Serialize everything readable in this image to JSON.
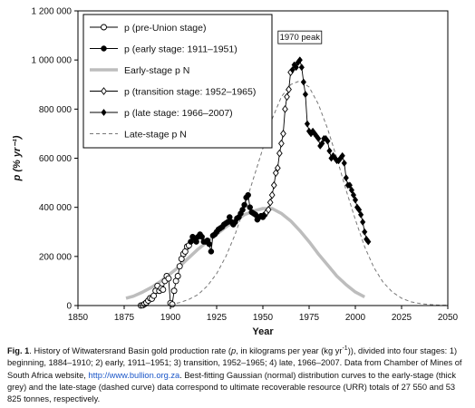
{
  "chart_data": {
    "type": "scatter",
    "xlabel": "Year",
    "ylabel": "p (% yr⁻¹)",
    "xlim": [
      1850,
      2050
    ],
    "ylim": [
      0,
      1200000
    ],
    "xticks": [
      1850,
      1875,
      1900,
      1925,
      1950,
      1975,
      2000,
      2025,
      2050
    ],
    "yticks": [
      0,
      200000,
      400000,
      600000,
      800000,
      1000000,
      1200000
    ],
    "xtick_labels": [
      "1850",
      "1875",
      "1900",
      "1925",
      "1950",
      "1975",
      "2000",
      "2025",
      "2050"
    ],
    "ytick_labels": [
      "0",
      "200 000",
      "400 000",
      "600 000",
      "800 000",
      "1 000 000",
      "1 200 000"
    ],
    "legend_position": "top-left",
    "annotation": "1970 peak",
    "series": [
      {
        "name": "p (pre-Union stage)",
        "style": "open-circle-line",
        "x": [
          1884,
          1885,
          1886,
          1887,
          1888,
          1889,
          1890,
          1891,
          1892,
          1893,
          1894,
          1895,
          1896,
          1897,
          1898,
          1899,
          1900,
          1901,
          1902,
          1903,
          1904,
          1905,
          1906,
          1907,
          1908,
          1909,
          1910
        ],
        "y": [
          300,
          1000,
          6000,
          12000,
          20000,
          30000,
          28000,
          40000,
          60000,
          80000,
          60000,
          70000,
          65000,
          100000,
          120000,
          110000,
          10000,
          5000,
          60000,
          100000,
          120000,
          160000,
          190000,
          210000,
          220000,
          240000,
          245000
        ]
      },
      {
        "name": "p (early stage: 1911–1951)",
        "style": "filled-circle-line",
        "x": [
          1911,
          1912,
          1913,
          1914,
          1915,
          1916,
          1917,
          1918,
          1919,
          1920,
          1921,
          1922,
          1923,
          1924,
          1925,
          1926,
          1927,
          1928,
          1929,
          1930,
          1931,
          1932,
          1933,
          1934,
          1935,
          1936,
          1937,
          1938,
          1939,
          1940,
          1941,
          1942,
          1943,
          1944,
          1945,
          1946,
          1947,
          1948,
          1949,
          1950,
          1951
        ],
        "y": [
          260000,
          280000,
          275000,
          260000,
          280000,
          290000,
          280000,
          260000,
          260000,
          265000,
          250000,
          220000,
          285000,
          290000,
          300000,
          310000,
          315000,
          320000,
          330000,
          335000,
          340000,
          360000,
          340000,
          330000,
          340000,
          355000,
          360000,
          375000,
          390000,
          410000,
          440000,
          450000,
          400000,
          380000,
          375000,
          370000,
          350000,
          360000,
          365000,
          360000,
          370000
        ]
      },
      {
        "name": "Early-stage p N",
        "style": "thick-grey-line",
        "x": [
          1876,
          1880,
          1885,
          1890,
          1895,
          1900,
          1905,
          1910,
          1915,
          1920,
          1925,
          1930,
          1935,
          1940,
          1945,
          1950,
          1955,
          1960,
          1965,
          1970,
          1975,
          1980,
          1985,
          1990,
          1995,
          2000,
          2005
        ],
        "y": [
          30000,
          38000,
          55000,
          75000,
          100000,
          130000,
          160000,
          195000,
          230000,
          260000,
          290000,
          320000,
          345000,
          370000,
          385000,
          395000,
          395000,
          375000,
          345000,
          305000,
          260000,
          210000,
          165000,
          120000,
          85000,
          55000,
          35000
        ]
      },
      {
        "name": "p (transition stage: 1952–1965)",
        "style": "open-diamond-line",
        "x": [
          1952,
          1953,
          1954,
          1955,
          1956,
          1957,
          1958,
          1959,
          1960,
          1961,
          1962,
          1963,
          1964,
          1965
        ],
        "y": [
          380000,
          390000,
          420000,
          450000,
          490000,
          540000,
          560000,
          620000,
          660000,
          700000,
          800000,
          850000,
          880000,
          950000
        ]
      },
      {
        "name": "p (late stage: 1966–2007)",
        "style": "filled-diamond-line",
        "x": [
          1966,
          1967,
          1968,
          1969,
          1970,
          1971,
          1972,
          1973,
          1974,
          1975,
          1976,
          1977,
          1978,
          1979,
          1980,
          1981,
          1982,
          1983,
          1984,
          1985,
          1986,
          1987,
          1988,
          1989,
          1990,
          1991,
          1992,
          1993,
          1994,
          1995,
          1996,
          1997,
          1998,
          1999,
          2000,
          2001,
          2002,
          2003,
          2004,
          2005,
          2006,
          2007
        ],
        "y": [
          960000,
          980000,
          970000,
          990000,
          1000000,
          970000,
          910000,
          860000,
          740000,
          710000,
          700000,
          710000,
          700000,
          690000,
          680000,
          650000,
          660000,
          680000,
          680000,
          670000,
          630000,
          600000,
          610000,
          600000,
          590000,
          590000,
          600000,
          610000,
          580000,
          520000,
          490000,
          490000,
          470000,
          450000,
          430000,
          400000,
          390000,
          370000,
          340000,
          300000,
          270000,
          260000
        ]
      },
      {
        "name": "Late-stage p N",
        "style": "dashed-grey-line",
        "x": [
          1900,
          1905,
          1910,
          1915,
          1920,
          1925,
          1930,
          1935,
          1940,
          1945,
          1950,
          1955,
          1960,
          1965,
          1970,
          1975,
          1980,
          1985,
          1990,
          1995,
          2000,
          2005,
          2010,
          2015,
          2020,
          2025,
          2030,
          2035,
          2040,
          2045,
          2050
        ],
        "y": [
          5000,
          12000,
          25000,
          45000,
          80000,
          130000,
          200000,
          290000,
          400000,
          520000,
          640000,
          760000,
          850000,
          900000,
          915000,
          890000,
          820000,
          720000,
          600000,
          470000,
          350000,
          240000,
          155000,
          95000,
          55000,
          30000,
          15000,
          8000,
          4000,
          2000,
          1000
        ]
      }
    ]
  },
  "caption": {
    "fig_label": "Fig. 1",
    "text_1": ". History of Witwatersrand Basin gold production rate (",
    "text_p": "p",
    "text_2": ", in kilograms per year (kg yr",
    "text_sup": "-1",
    "text_3": ")), divided into four stages: 1) beginning, 1884–1910; 2) early, 1911–1951; 3) transition, 1952–1965; 4) late, 1966–2007. Data from Chamber of Mines of South Africa website, ",
    "link": "http://www.bullion.org.za",
    "text_4": ". Best-fitting Gaussian (normal) distribution curves to the early-stage (thick grey) and the late-stage (dashed curve) data correspond to ultimate recoverable resource (URR) totals of 27 550 and 53 825 tonnes, respectively."
  },
  "colors": {
    "series_line": "#000000",
    "fit_grey": "#bdbdbd",
    "fit_dashed": "#777777"
  }
}
